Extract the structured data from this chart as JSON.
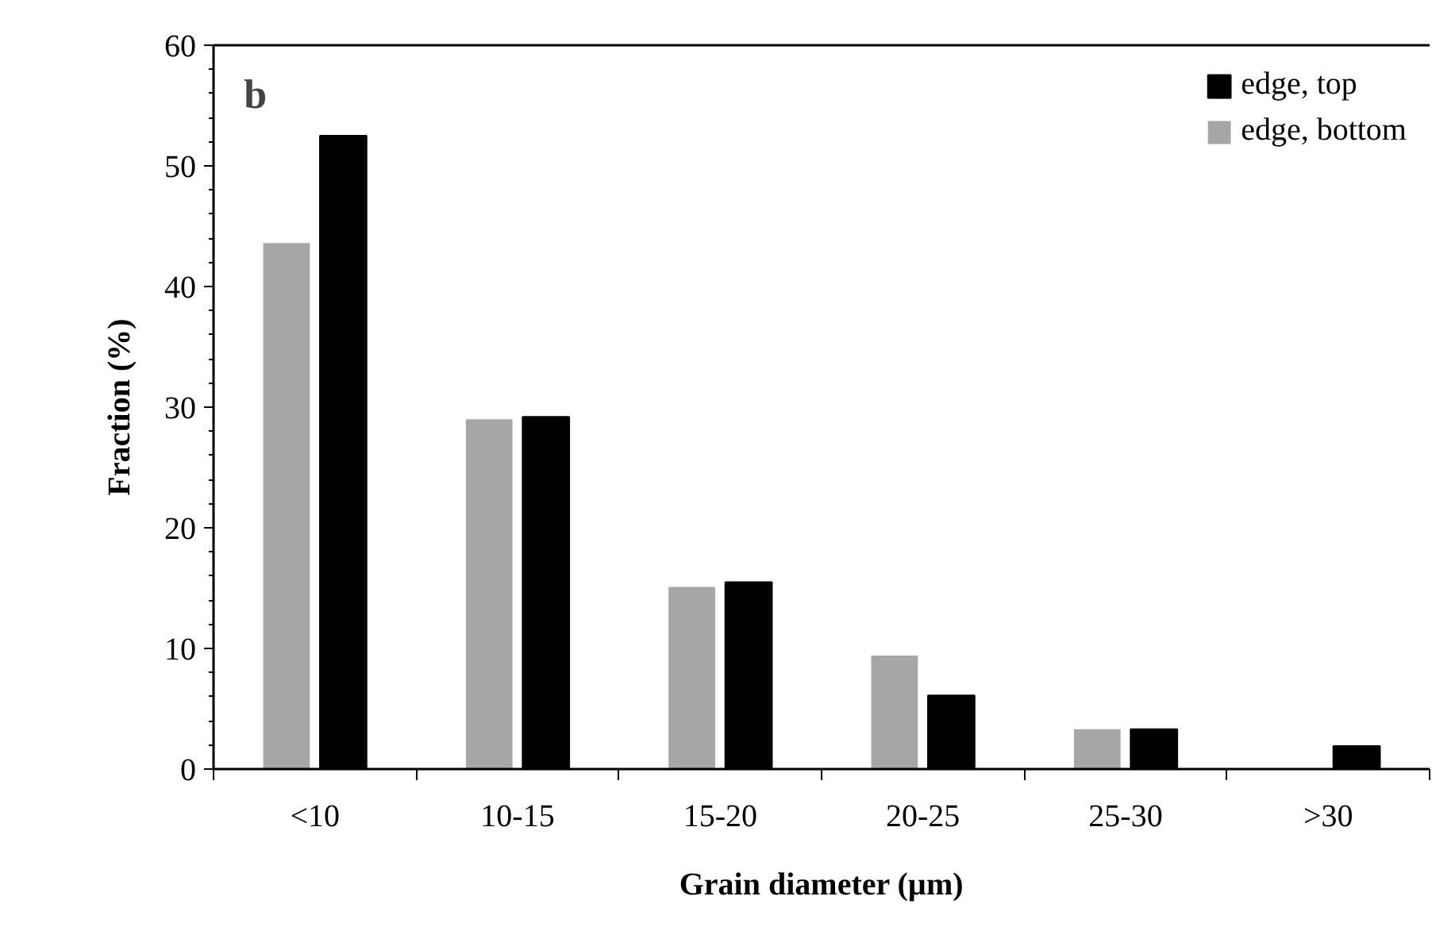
{
  "chart_data": {
    "type": "bar",
    "xlabel": "Grain diameter (µm)",
    "ylabel": "Fraction (%)",
    "categories": [
      "<10",
      "10-15",
      "15-20",
      "20-25",
      "25-30",
      ">30"
    ],
    "series": [
      {
        "name": "edge, bottom",
        "color": "#a6a6a6",
        "values": [
          43.6,
          29.0,
          15.1,
          9.4,
          3.3,
          0
        ]
      },
      {
        "name": "edge, top",
        "color": "#000000",
        "values": [
          52.5,
          29.2,
          15.5,
          6.1,
          3.3,
          1.9
        ]
      }
    ],
    "ylim": [
      0,
      60
    ],
    "yticks": [
      0,
      10,
      20,
      30,
      40,
      50,
      60
    ],
    "grid": false,
    "legend": "top right",
    "annotations": [
      "b"
    ]
  }
}
